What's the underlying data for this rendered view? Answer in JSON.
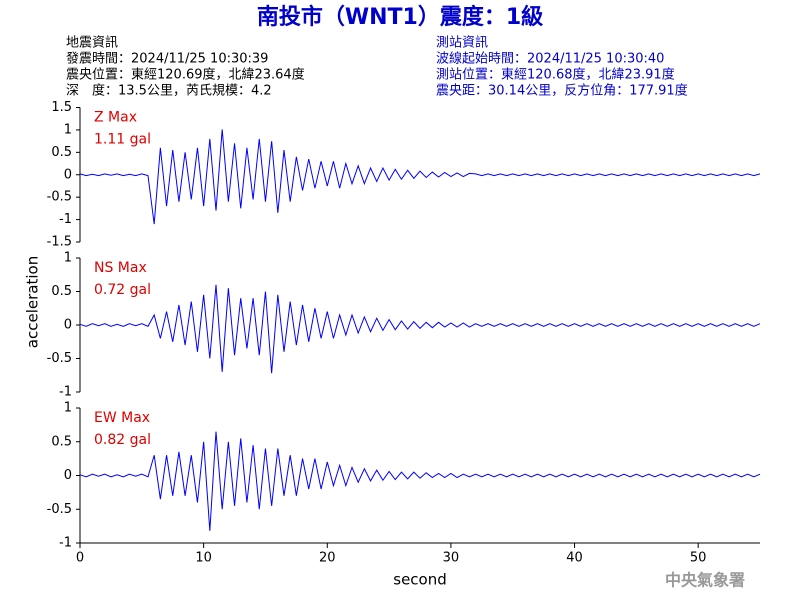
{
  "header": {
    "title": "南投市（WNT1）震度：1級",
    "event": [
      "地震資訊",
      "發震時間：2024/11/25 10:30:39",
      "震央位置：東經120.69度，北緯23.64度",
      "深　度：13.5公里，芮氏規模：4.2"
    ],
    "station": [
      "測站資訊",
      "波線起始時間：2024/11/25 10:30:40",
      "測站位置：東經120.68度，北緯23.91度",
      "震央距：30.14公里，反方位角：177.91度"
    ]
  },
  "ylabel": "acceleration",
  "footer": "中央氣象署",
  "chart_data": [
    {
      "type": "line",
      "label": "Z Max",
      "max_label": "1.11 gal",
      "color": "#0000ff",
      "ylim": [
        -1.5,
        1.5
      ],
      "yticks": [
        -1.5,
        -1,
        -0.5,
        0,
        0.5,
        1,
        1.5
      ],
      "xlim": [
        0,
        55
      ],
      "x": [
        0,
        0.5,
        1,
        1.5,
        2,
        2.5,
        3,
        3.5,
        4,
        4.5,
        5,
        5.5,
        6,
        6.5,
        7,
        7.5,
        8,
        8.5,
        9,
        9.5,
        10,
        10.5,
        11,
        11.5,
        12,
        12.5,
        13,
        13.5,
        14,
        14.5,
        15,
        15.5,
        16,
        16.5,
        17,
        17.5,
        18,
        18.5,
        19,
        19.5,
        20,
        20.5,
        21,
        21.5,
        22,
        22.5,
        23,
        23.5,
        24,
        24.5,
        25,
        25.5,
        26,
        26.5,
        27,
        27.5,
        28,
        28.5,
        29,
        29.5,
        30,
        30.5,
        31,
        31.5,
        32,
        32.5,
        33,
        33.5,
        34,
        34.5,
        35,
        35.5,
        36,
        36.5,
        37,
        37.5,
        38,
        38.5,
        39,
        39.5,
        40,
        40.5,
        41,
        41.5,
        42,
        42.5,
        43,
        43.5,
        44,
        44.5,
        45,
        45.5,
        46,
        46.5,
        47,
        47.5,
        48,
        48.5,
        49,
        49.5,
        50,
        50.5,
        51,
        51.5,
        52,
        52.5,
        53,
        53.5,
        54,
        54.5,
        55
      ],
      "values": [
        0.02,
        -0.02,
        0.01,
        -0.02,
        0.02,
        -0.01,
        0.02,
        -0.02,
        0.01,
        -0.02,
        0.02,
        -0.02,
        -1.1,
        0.6,
        -0.7,
        0.55,
        -0.6,
        0.5,
        -0.55,
        0.6,
        -0.7,
        0.8,
        -0.8,
        1.01,
        -0.6,
        0.7,
        -0.75,
        0.6,
        -0.55,
        0.8,
        -0.6,
        0.75,
        -0.85,
        0.55,
        -0.6,
        0.4,
        -0.35,
        0.35,
        -0.3,
        0.3,
        -0.25,
        0.3,
        -0.3,
        0.25,
        -0.2,
        0.2,
        -0.2,
        0.15,
        -0.15,
        0.15,
        -0.12,
        0.12,
        -0.1,
        0.1,
        -0.08,
        0.08,
        -0.06,
        0.06,
        -0.05,
        0.05,
        -0.04,
        0.04,
        -0.04,
        0.03,
        0.02,
        -0.02,
        0.02,
        -0.02,
        0.02,
        -0.02,
        0.02,
        -0.02,
        0.02,
        -0.02,
        0.02,
        -0.02,
        0.02,
        -0.02,
        0.02,
        -0.02,
        0.02,
        -0.02,
        0.02,
        -0.02,
        0.02,
        -0.02,
        0.02,
        -0.02,
        0.02,
        -0.02,
        0.02,
        -0.02,
        0.02,
        -0.02,
        0.02,
        -0.02,
        0.02,
        -0.02,
        0.02,
        -0.02,
        0.02,
        -0.02,
        0.02,
        -0.02,
        0.02,
        -0.02,
        0.02,
        -0.02,
        0.02,
        -0.02,
        0.02
      ]
    },
    {
      "type": "line",
      "label": "NS Max",
      "max_label": "0.72 gal",
      "color": "#0000ff",
      "ylim": [
        -1,
        1
      ],
      "yticks": [
        -1,
        -0.5,
        0,
        0.5,
        1
      ],
      "xlim": [
        0,
        55
      ],
      "x": [
        0,
        0.5,
        1,
        1.5,
        2,
        2.5,
        3,
        3.5,
        4,
        4.5,
        5,
        5.5,
        6,
        6.5,
        7,
        7.5,
        8,
        8.5,
        9,
        9.5,
        10,
        10.5,
        11,
        11.5,
        12,
        12.5,
        13,
        13.5,
        14,
        14.5,
        15,
        15.5,
        16,
        16.5,
        17,
        17.5,
        18,
        18.5,
        19,
        19.5,
        20,
        20.5,
        21,
        21.5,
        22,
        22.5,
        23,
        23.5,
        24,
        24.5,
        25,
        25.5,
        26,
        26.5,
        27,
        27.5,
        28,
        28.5,
        29,
        29.5,
        30,
        30.5,
        31,
        31.5,
        32,
        32.5,
        33,
        33.5,
        34,
        34.5,
        35,
        35.5,
        36,
        36.5,
        37,
        37.5,
        38,
        38.5,
        39,
        39.5,
        40,
        40.5,
        41,
        41.5,
        42,
        42.5,
        43,
        43.5,
        44,
        44.5,
        45,
        45.5,
        46,
        46.5,
        47,
        47.5,
        48,
        48.5,
        49,
        49.5,
        50,
        50.5,
        51,
        51.5,
        52,
        52.5,
        53,
        53.5,
        54,
        54.5,
        55
      ],
      "values": [
        0.01,
        -0.02,
        0.02,
        -0.01,
        0.02,
        -0.02,
        0.01,
        -0.02,
        0.02,
        -0.01,
        0.02,
        -0.02,
        0.15,
        -0.2,
        0.2,
        -0.25,
        0.3,
        -0.3,
        0.35,
        -0.4,
        0.45,
        -0.5,
        0.6,
        -0.7,
        0.55,
        -0.45,
        0.4,
        -0.35,
        0.4,
        -0.45,
        0.5,
        -0.72,
        0.45,
        -0.4,
        0.35,
        -0.3,
        0.3,
        -0.25,
        0.25,
        -0.2,
        0.2,
        -0.2,
        0.15,
        -0.15,
        0.15,
        -0.12,
        0.12,
        -0.1,
        0.1,
        -0.08,
        0.08,
        -0.07,
        0.06,
        -0.06,
        0.05,
        -0.05,
        0.04,
        -0.04,
        0.04,
        -0.03,
        0.03,
        -0.03,
        0.03,
        -0.03,
        0.02,
        -0.02,
        0.02,
        -0.02,
        0.02,
        -0.02,
        0.02,
        -0.02,
        0.02,
        -0.02,
        0.02,
        -0.02,
        0.02,
        -0.02,
        0.02,
        -0.02,
        0.02,
        -0.02,
        0.02,
        -0.02,
        0.02,
        -0.02,
        0.02,
        -0.02,
        0.02,
        -0.02,
        0.02,
        -0.02,
        0.02,
        -0.02,
        0.02,
        -0.02,
        0.02,
        -0.02,
        0.02,
        -0.02,
        0.02,
        -0.02,
        0.02,
        -0.02,
        0.02,
        -0.02,
        0.02,
        -0.02,
        0.02,
        -0.02,
        0.02
      ]
    },
    {
      "type": "line",
      "label": "EW Max",
      "max_label": "0.82 gal",
      "color": "#0000ff",
      "ylim": [
        -1,
        1
      ],
      "yticks": [
        -1,
        -0.5,
        0,
        0.5,
        1
      ],
      "xlim": [
        0,
        55
      ],
      "xticks": [
        0,
        10,
        20,
        30,
        40,
        50
      ],
      "xlabel": "second",
      "x": [
        0,
        0.5,
        1,
        1.5,
        2,
        2.5,
        3,
        3.5,
        4,
        4.5,
        5,
        5.5,
        6,
        6.5,
        7,
        7.5,
        8,
        8.5,
        9,
        9.5,
        10,
        10.5,
        11,
        11.5,
        12,
        12.5,
        13,
        13.5,
        14,
        14.5,
        15,
        15.5,
        16,
        16.5,
        17,
        17.5,
        18,
        18.5,
        19,
        19.5,
        20,
        20.5,
        21,
        21.5,
        22,
        22.5,
        23,
        23.5,
        24,
        24.5,
        25,
        25.5,
        26,
        26.5,
        27,
        27.5,
        28,
        28.5,
        29,
        29.5,
        30,
        30.5,
        31,
        31.5,
        32,
        32.5,
        33,
        33.5,
        34,
        34.5,
        35,
        35.5,
        36,
        36.5,
        37,
        37.5,
        38,
        38.5,
        39,
        39.5,
        40,
        40.5,
        41,
        41.5,
        42,
        42.5,
        43,
        43.5,
        44,
        44.5,
        45,
        45.5,
        46,
        46.5,
        47,
        47.5,
        48,
        48.5,
        49,
        49.5,
        50,
        50.5,
        51,
        51.5,
        52,
        52.5,
        53,
        53.5,
        54,
        54.5,
        55
      ],
      "values": [
        0.01,
        -0.02,
        0.02,
        -0.01,
        0.02,
        -0.02,
        0.01,
        -0.02,
        0.02,
        -0.01,
        0.02,
        -0.02,
        0.3,
        -0.35,
        0.3,
        -0.3,
        0.35,
        -0.3,
        0.3,
        -0.4,
        0.5,
        -0.82,
        0.65,
        -0.5,
        0.5,
        -0.45,
        0.55,
        -0.4,
        0.45,
        -0.5,
        0.4,
        -0.45,
        0.4,
        -0.3,
        0.3,
        -0.3,
        0.25,
        -0.2,
        0.25,
        -0.2,
        0.2,
        -0.15,
        0.15,
        -0.15,
        0.12,
        -0.1,
        0.1,
        -0.08,
        0.08,
        -0.07,
        0.06,
        -0.06,
        0.05,
        -0.05,
        0.05,
        -0.04,
        0.04,
        -0.03,
        0.03,
        -0.03,
        0.03,
        -0.03,
        0.02,
        -0.02,
        0.02,
        -0.02,
        0.02,
        -0.02,
        0.02,
        -0.02,
        0.02,
        -0.02,
        0.02,
        -0.02,
        0.02,
        -0.02,
        0.02,
        -0.02,
        0.02,
        -0.02,
        0.02,
        -0.02,
        0.02,
        -0.02,
        0.02,
        -0.02,
        0.02,
        -0.02,
        0.02,
        -0.02,
        0.02,
        -0.02,
        0.02,
        -0.02,
        0.02,
        -0.02,
        0.02,
        -0.02,
        0.02,
        -0.02,
        0.02,
        -0.02,
        0.02,
        -0.02,
        0.02,
        -0.02,
        0.02,
        -0.02,
        0.02,
        -0.02,
        0.02
      ]
    }
  ]
}
